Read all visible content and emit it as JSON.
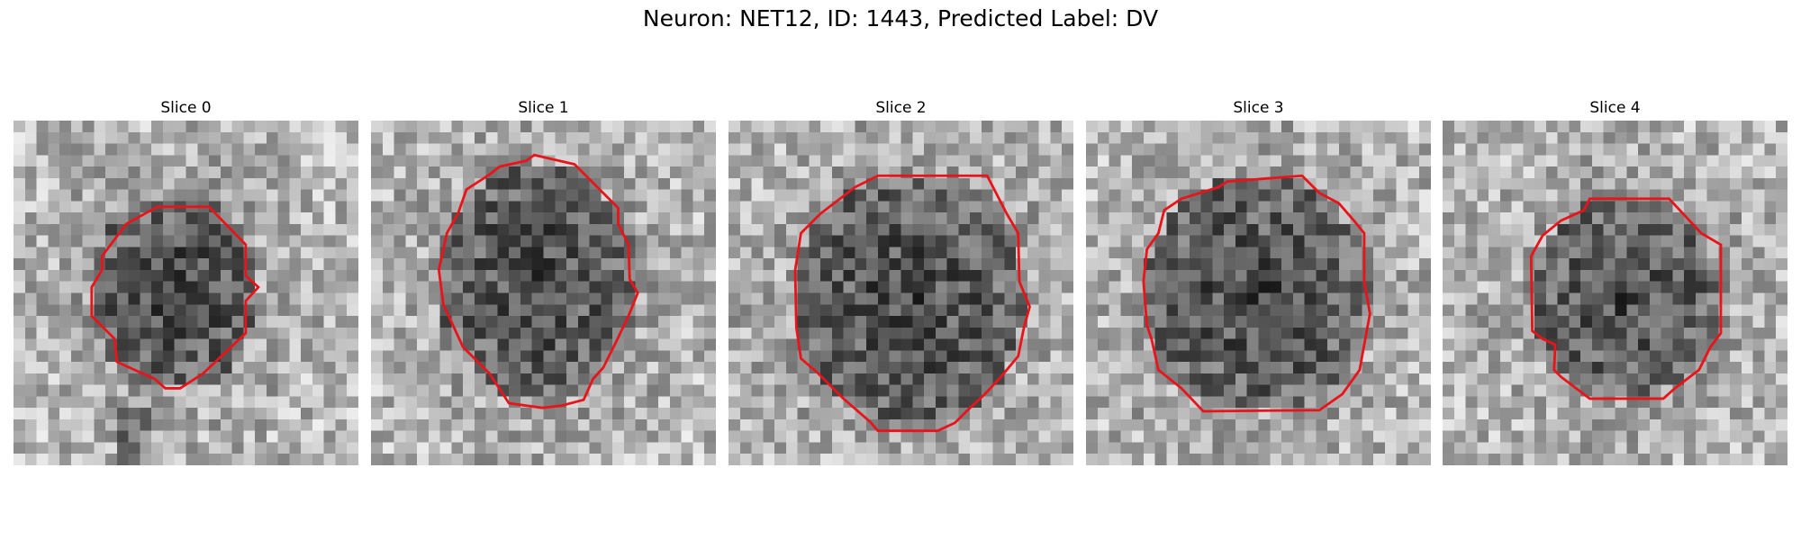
{
  "figure": {
    "title": "Neuron: NET12, ID: 1443, Predicted Label: DV",
    "contour_color": "#e8141a",
    "colormap": "gray"
  },
  "panels": [
    {
      "title": "Slice 0"
    },
    {
      "title": "Slice 1"
    },
    {
      "title": "Slice 2"
    },
    {
      "title": "Slice 3"
    },
    {
      "title": "Slice 4"
    }
  ]
}
